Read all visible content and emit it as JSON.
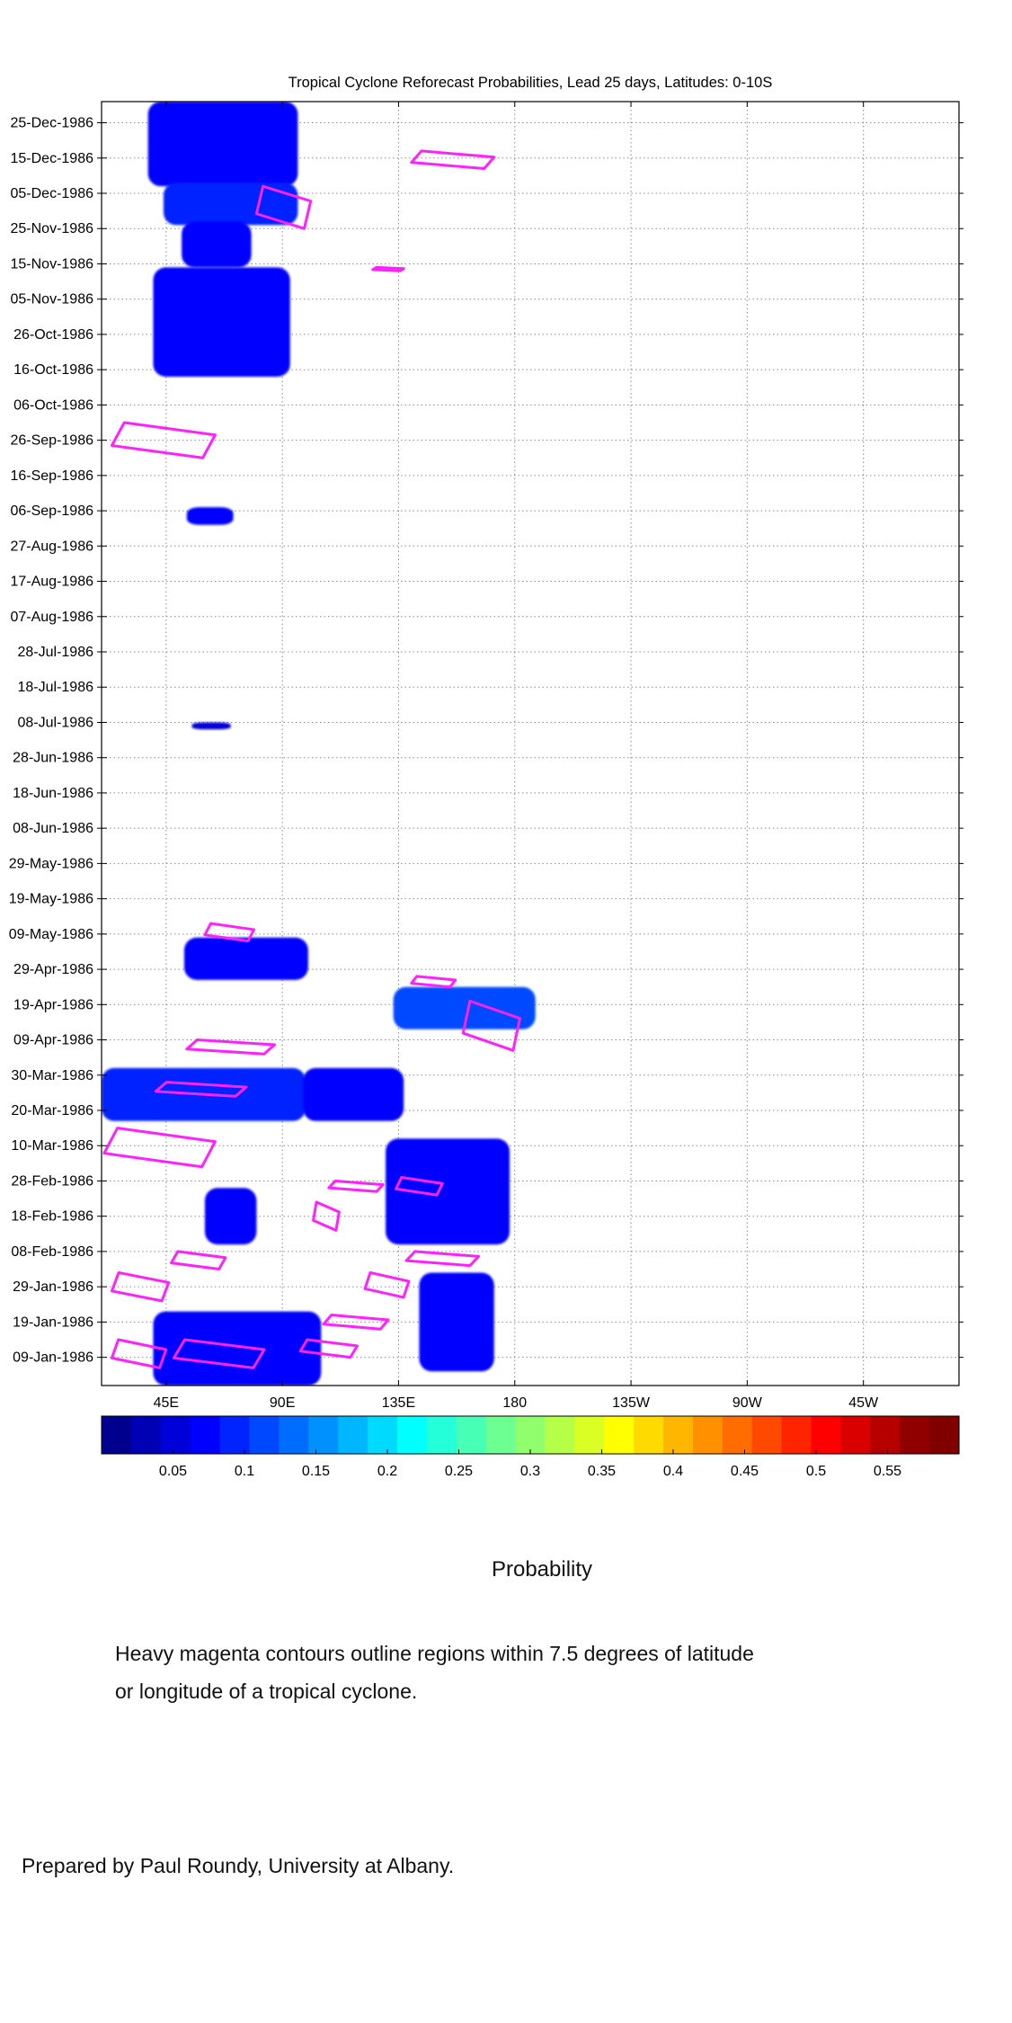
{
  "chart_data": {
    "type": "heatmap",
    "title": "Tropical Cyclone Reforecast Probabilities, Lead 25 days, Latitudes: 0-10S",
    "x_tick_labels": [
      "45E",
      "90E",
      "135E",
      "180",
      "135W",
      "90W",
      "45W"
    ],
    "x_ticks_deg_east": [
      45,
      90,
      135,
      180,
      225,
      270,
      315
    ],
    "xlim_deg_east": [
      20,
      352
    ],
    "y_tick_labels": [
      "09-Jan-1986",
      "19-Jan-1986",
      "29-Jan-1986",
      "08-Feb-1986",
      "18-Feb-1986",
      "28-Feb-1986",
      "10-Mar-1986",
      "20-Mar-1986",
      "30-Mar-1986",
      "09-Apr-1986",
      "19-Apr-1986",
      "29-Apr-1986",
      "09-May-1986",
      "19-May-1986",
      "29-May-1986",
      "08-Jun-1986",
      "18-Jun-1986",
      "28-Jun-1986",
      "08-Jul-1986",
      "18-Jul-1986",
      "28-Jul-1986",
      "07-Aug-1986",
      "17-Aug-1986",
      "27-Aug-1986",
      "06-Sep-1986",
      "16-Sep-1986",
      "26-Sep-1986",
      "06-Oct-1986",
      "16-Oct-1986",
      "26-Oct-1986",
      "05-Nov-1986",
      "15-Nov-1986",
      "25-Nov-1986",
      "05-Dec-1986",
      "15-Dec-1986",
      "25-Dec-1986"
    ],
    "ylim_dates": [
      "1986-01-01",
      "1986-12-31"
    ],
    "grid": true,
    "colorbar": {
      "label": "Probability",
      "tick_labels": [
        "0.05",
        "0.1",
        "0.15",
        "0.2",
        "0.25",
        "0.3",
        "0.35",
        "0.4",
        "0.45",
        "0.5",
        "0.55"
      ],
      "ticks": [
        0.05,
        0.1,
        0.15,
        0.2,
        0.25,
        0.3,
        0.35,
        0.4,
        0.45,
        0.5,
        0.55
      ],
      "range": [
        0.0,
        0.6
      ],
      "colors": [
        "#00008f",
        "#0000b4",
        "#0000d8",
        "#0000ff",
        "#0024ff",
        "#0048ff",
        "#006dff",
        "#0091ff",
        "#00b6ff",
        "#00daff",
        "#00ffff",
        "#24ffda",
        "#48ffb6",
        "#6dff91",
        "#91ff6d",
        "#b6ff48",
        "#daff24",
        "#ffff00",
        "#ffda00",
        "#ffb600",
        "#ff9100",
        "#ff6d00",
        "#ff4800",
        "#ff2400",
        "#ff0000",
        "#da0000",
        "#b60000",
        "#910000",
        "#800000"
      ]
    },
    "probability_blobs": [
      {
        "lon_range": [
          38,
          96
        ],
        "dates": [
          "1986-12-07",
          "1986-12-31"
        ],
        "p": 0.08
      },
      {
        "lon_range": [
          44,
          96
        ],
        "dates": [
          "1986-11-26",
          "1986-12-08"
        ],
        "p": 0.09
      },
      {
        "lon_range": [
          51,
          78
        ],
        "dates": [
          "1986-11-14",
          "1986-11-27"
        ],
        "p": 0.07
      },
      {
        "lon_range": [
          40,
          93
        ],
        "dates": [
          "1986-10-14",
          "1986-11-14"
        ],
        "p": 0.08
      },
      {
        "lon_range": [
          53,
          71
        ],
        "dates": [
          "1986-09-02",
          "1986-09-07"
        ],
        "p": 0.07
      },
      {
        "lon_range": [
          55,
          70
        ],
        "dates": [
          "1986-07-06",
          "1986-07-08"
        ],
        "p": 0.06
      },
      {
        "lon_range": [
          52,
          100
        ],
        "dates": [
          "1986-04-26",
          "1986-05-08"
        ],
        "p": 0.07
      },
      {
        "lon_range": [
          133,
          188
        ],
        "dates": [
          "1986-04-12",
          "1986-04-24"
        ],
        "p": 0.12
      },
      {
        "lon_range": [
          20,
          99
        ],
        "dates": [
          "1986-03-17",
          "1986-04-01"
        ],
        "p": 0.09
      },
      {
        "lon_range": [
          98,
          137
        ],
        "dates": [
          "1986-03-17",
          "1986-04-01"
        ],
        "p": 0.08
      },
      {
        "lon_range": [
          130,
          178
        ],
        "dates": [
          "1986-02-10",
          "1986-03-12"
        ],
        "p": 0.07
      },
      {
        "lon_range": [
          60,
          80
        ],
        "dates": [
          "1986-02-10",
          "1986-02-26"
        ],
        "p": 0.07
      },
      {
        "lon_range": [
          40,
          105
        ],
        "dates": [
          "1986-01-01",
          "1986-01-22"
        ],
        "p": 0.08
      },
      {
        "lon_range": [
          143,
          172
        ],
        "dates": [
          "1986-01-05",
          "1986-02-02"
        ],
        "p": 0.07
      }
    ],
    "cyclone_contours": [
      {
        "lon_range": [
          140,
          172
        ],
        "dates": [
          "1986-12-12",
          "1986-12-17"
        ]
      },
      {
        "lon_range": [
          80,
          101
        ],
        "dates": [
          "1986-11-25",
          "1986-12-07"
        ]
      },
      {
        "lon_range": [
          125,
          137
        ],
        "dates": [
          "1986-11-13",
          "1986-11-14"
        ]
      },
      {
        "lon_range": [
          24,
          64
        ],
        "dates": [
          "1986-09-21",
          "1986-10-01"
        ]
      },
      {
        "lon_range": [
          60,
          79
        ],
        "dates": [
          "1986-05-07",
          "1986-05-12"
        ]
      },
      {
        "lon_range": [
          140,
          157
        ],
        "dates": [
          "1986-04-24",
          "1986-04-27"
        ]
      },
      {
        "lon_range": [
          160,
          182
        ],
        "dates": [
          "1986-04-06",
          "1986-04-20"
        ]
      },
      {
        "lon_range": [
          53,
          87
        ],
        "dates": [
          "1986-04-05",
          "1986-04-09"
        ]
      },
      {
        "lon_range": [
          41,
          76
        ],
        "dates": [
          "1986-03-24",
          "1986-03-28"
        ]
      },
      {
        "lon_range": [
          21,
          64
        ],
        "dates": [
          "1986-03-04",
          "1986-03-15"
        ]
      },
      {
        "lon_range": [
          108,
          129
        ],
        "dates": [
          "1986-02-25",
          "1986-02-28"
        ]
      },
      {
        "lon_range": [
          134,
          152
        ],
        "dates": [
          "1986-02-24",
          "1986-03-01"
        ]
      },
      {
        "lon_range": [
          102,
          112
        ],
        "dates": [
          "1986-02-14",
          "1986-02-22"
        ]
      },
      {
        "lon_range": [
          138,
          166
        ],
        "dates": [
          "1986-02-04",
          "1986-02-08"
        ]
      },
      {
        "lon_range": [
          47,
          68
        ],
        "dates": [
          "1986-02-03",
          "1986-02-08"
        ]
      },
      {
        "lon_range": [
          24,
          46
        ],
        "dates": [
          "1986-01-25",
          "1986-02-02"
        ]
      },
      {
        "lon_range": [
          122,
          139
        ],
        "dates": [
          "1986-01-26",
          "1986-02-02"
        ]
      },
      {
        "lon_range": [
          106,
          131
        ],
        "dates": [
          "1986-01-17",
          "1986-01-21"
        ]
      },
      {
        "lon_range": [
          97,
          119
        ],
        "dates": [
          "1986-01-09",
          "1986-01-14"
        ]
      },
      {
        "lon_range": [
          24,
          45
        ],
        "dates": [
          "1986-01-06",
          "1986-01-14"
        ]
      },
      {
        "lon_range": [
          48,
          83
        ],
        "dates": [
          "1986-01-06",
          "1986-01-14"
        ]
      }
    ]
  },
  "captions": {
    "colorbar_label": "Probability",
    "note_line1": "Heavy magenta contours outline regions within 7.5 degrees of latitude",
    "note_line2": "or longitude of a tropical cyclone.",
    "credit": "Prepared by Paul Roundy, University at Albany."
  }
}
